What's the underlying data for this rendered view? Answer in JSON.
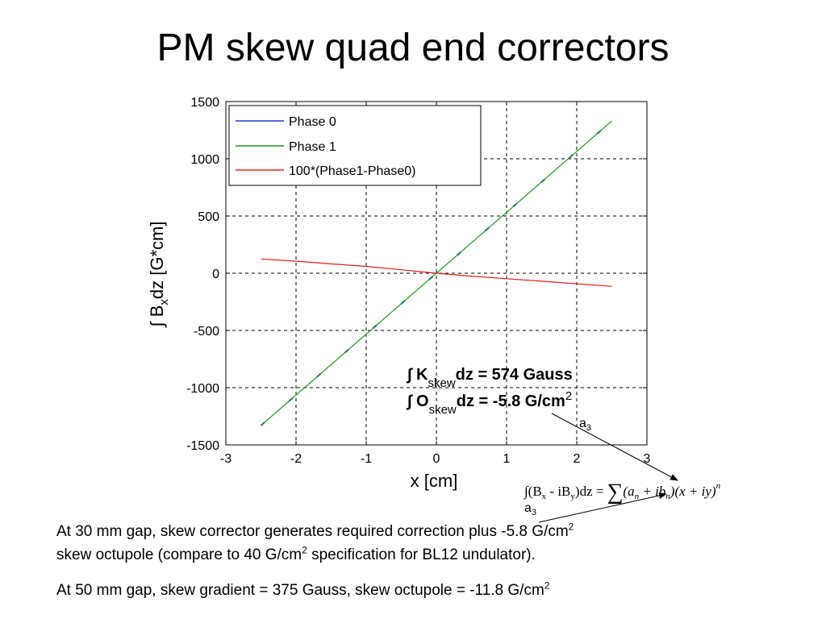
{
  "slide": {
    "title": "PM skew quad end correctors"
  },
  "chart_data": {
    "type": "line",
    "title": "",
    "xlabel": "x [cm]",
    "ylabel": "∫ B_x dz [G*cm]",
    "xlim": [
      -3,
      3
    ],
    "ylim": [
      -1500,
      1500
    ],
    "xticks": [
      -3,
      -2,
      -1,
      0,
      1,
      2,
      3
    ],
    "yticks": [
      -1500,
      -1000,
      -500,
      0,
      500,
      1000,
      1500
    ],
    "grid": true,
    "legend_position": "top-left",
    "series": [
      {
        "name": "Phase 0",
        "color": "#1f3fbf",
        "x": [
          -2.5,
          2.5
        ],
        "y": [
          -1330,
          1330
        ]
      },
      {
        "name": "Phase 1",
        "color": "#1a9a1a",
        "x": [
          -2.5,
          2.5
        ],
        "y": [
          -1330,
          1330
        ]
      },
      {
        "name": "100*(Phase1-Phase0)",
        "color": "#e02020",
        "x": [
          -2.5,
          -2,
          -1.5,
          -1,
          -0.5,
          0,
          0.5,
          1,
          1.5,
          2,
          2.5
        ],
        "y": [
          125,
          105,
          82,
          60,
          30,
          0,
          -25,
          -48,
          -70,
          -92,
          -115
        ]
      }
    ],
    "annotations": {
      "k_line": {
        "prefix": "∫ K",
        "sub": "skew",
        "suffix": "dz = 574 Gauss"
      },
      "o_line": {
        "prefix": "∫ O",
        "sub": "skew",
        "suffix": "dz = -5.8 G/cm",
        "sup": "2"
      }
    }
  },
  "formula": {
    "label_a3_upper": "a",
    "label_a3_lower": "a",
    "label_sub": "3",
    "integral": "∫(B",
    "bx_sub": "x",
    "minus": " - iB",
    "by_sub": "y",
    "dz": ")dz =",
    "sum": "∑",
    "rhs_open": "(a",
    "rhs_n1": "n",
    "plus": " + ib",
    "rhs_n2": "n",
    "xy": ")(x + iy)",
    "exp": "n"
  },
  "text": {
    "line1_a": "At 30 mm gap, skew corrector generates required correction plus -5.8 G/cm",
    "line1_sup": "2",
    "line2_a": "skew octupole (compare to 40 G/cm",
    "line2_sup": "2",
    "line2_b": " specification for BL12 undulator).",
    "line3_a": "At 50 mm gap, skew gradient = 375 Gauss, skew octupole = -11.8 G/cm",
    "line3_sup": "2"
  }
}
